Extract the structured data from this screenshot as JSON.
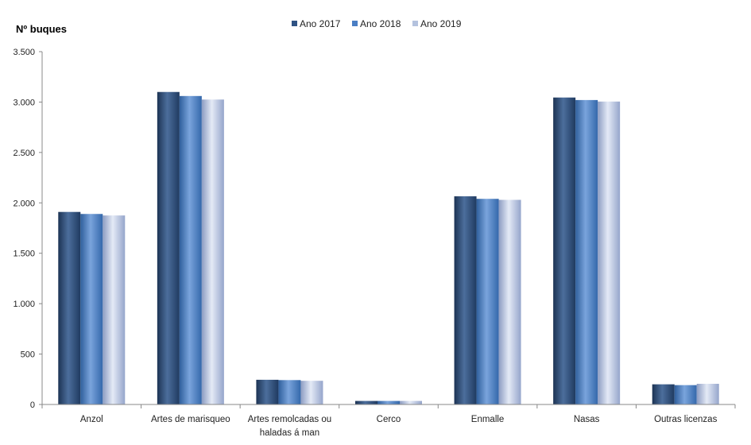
{
  "chart_data": {
    "type": "bar",
    "title": "",
    "xlabel": "",
    "ylabel": "Nº  buques",
    "ylim": [
      0,
      3500
    ],
    "yticks": [
      0,
      500,
      1000,
      1500,
      2000,
      2500,
      3000,
      3500
    ],
    "ytick_labels": [
      "0",
      "500",
      "1.000",
      "1.500",
      "2.000",
      "2.500",
      "3.000",
      "3.500"
    ],
    "categories": [
      [
        "Anzol"
      ],
      [
        "Artes de marisqueo"
      ],
      [
        "Artes remolcadas ou",
        "haladas á man"
      ],
      [
        "Cerco"
      ],
      [
        "Enmalle"
      ],
      [
        "Nasas"
      ],
      [
        "Outras licenzas"
      ]
    ],
    "series": [
      {
        "name": "Ano 2017",
        "color": "#2e5283",
        "values": [
          1910,
          3100,
          245,
          35,
          2065,
          3045,
          200
        ]
      },
      {
        "name": "Ano 2018",
        "color": "#4a7ec4",
        "values": [
          1890,
          3060,
          242,
          35,
          2040,
          3020,
          192
        ]
      },
      {
        "name": "Ano 2019",
        "color": "#b4c2de",
        "values": [
          1875,
          3025,
          235,
          35,
          2030,
          3005,
          205
        ]
      }
    ],
    "legend_position": "top",
    "grid": false
  }
}
